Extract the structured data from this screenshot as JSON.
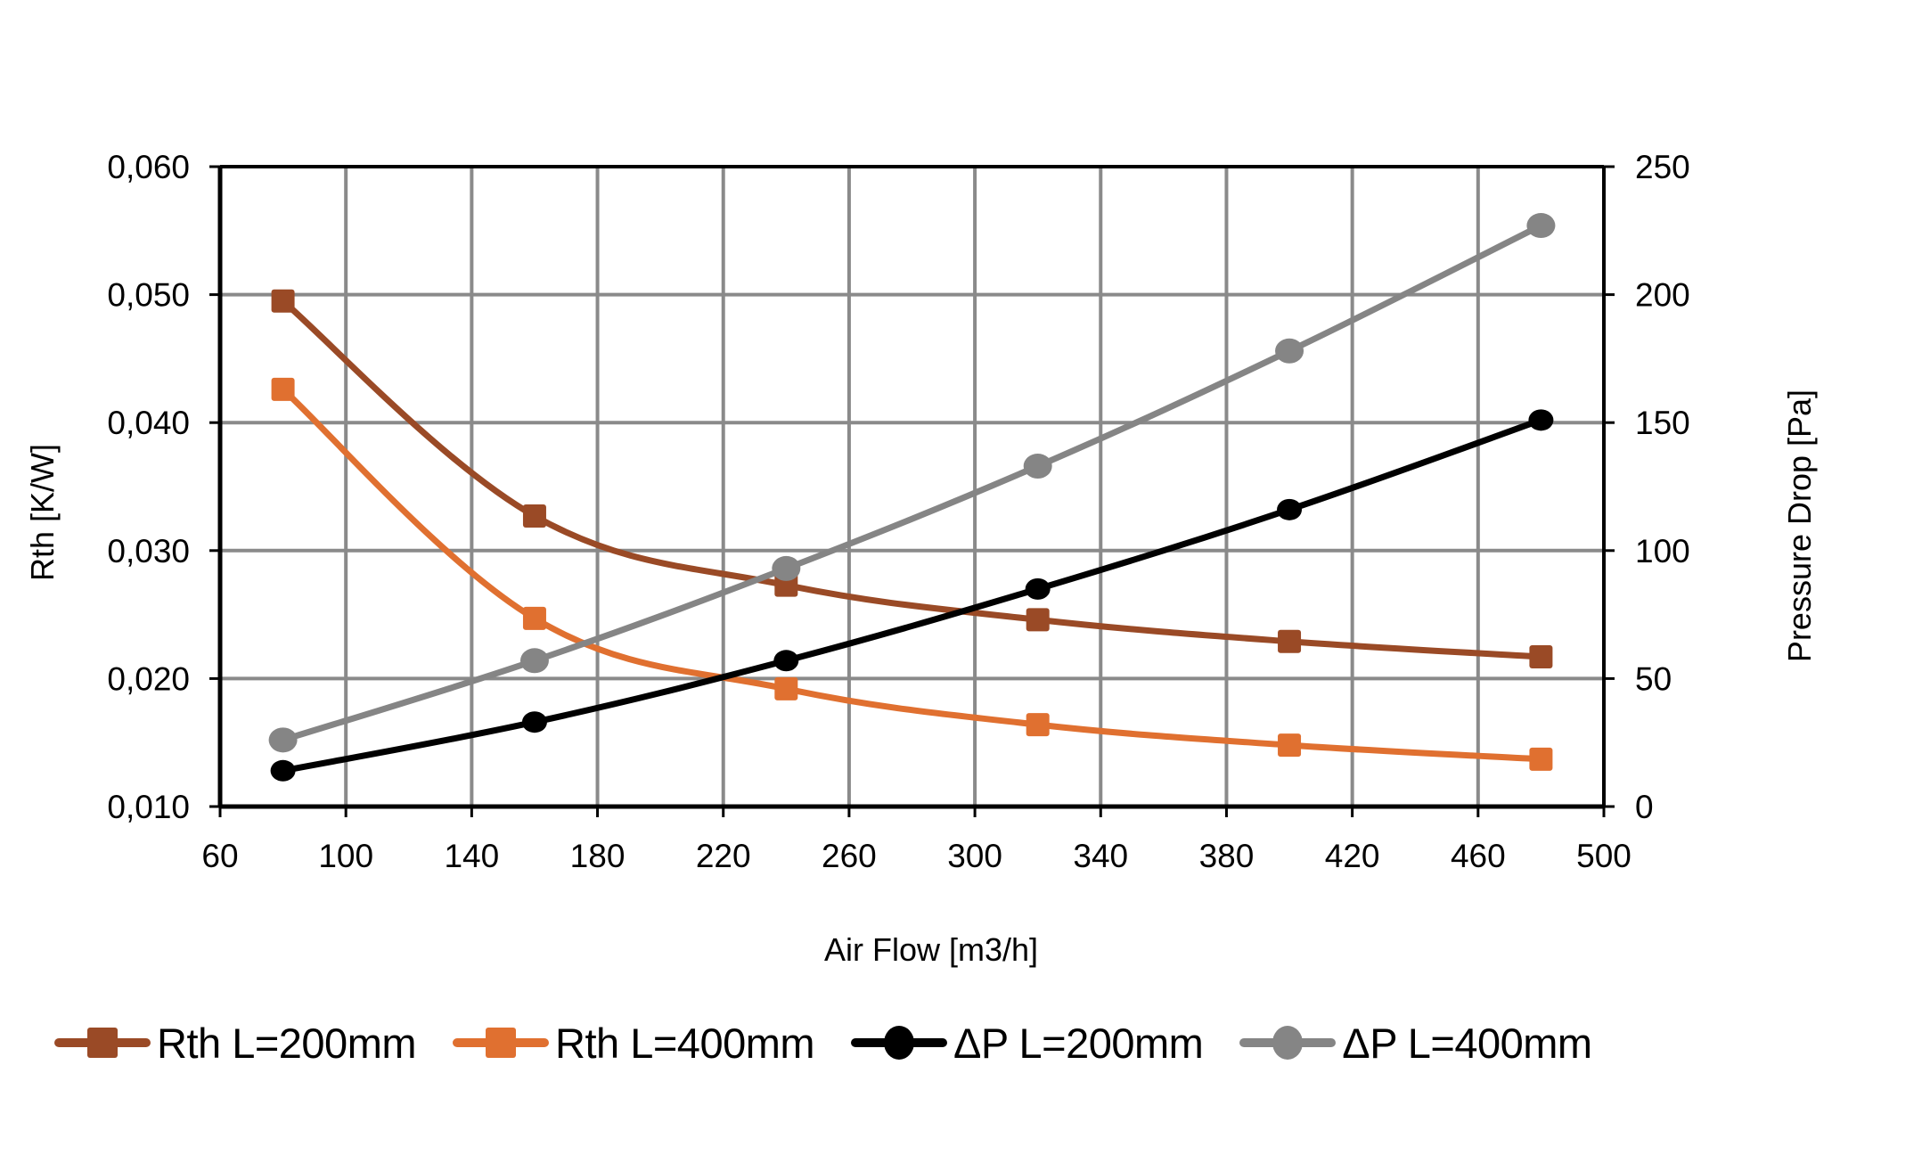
{
  "chart_data": {
    "type": "line",
    "title": "",
    "xlabel": "Air Flow [m3/h]",
    "ylabel": "Rth [K/W]",
    "y2label": "Pressure Drop [Pa]",
    "xlim": [
      60,
      500
    ],
    "ylim": [
      0.01,
      0.06
    ],
    "y2lim": [
      0,
      250
    ],
    "grid": true,
    "legend_position": "bottom",
    "x_ticks": [
      "60",
      "100",
      "140",
      "180",
      "220",
      "260",
      "300",
      "340",
      "380",
      "420",
      "460",
      "500"
    ],
    "y_ticks": [
      "0,010",
      "0,020",
      "0,030",
      "0,040",
      "0,050",
      "0,060"
    ],
    "y2_ticks": [
      "0",
      "50",
      "100",
      "150",
      "200",
      "250"
    ],
    "x": [
      80,
      160,
      240,
      320,
      400,
      480
    ],
    "series": [
      {
        "name": "Rth L=200mm",
        "axis": "left",
        "marker": "square",
        "color": "#9A4A26",
        "values": [
          0.0495,
          0.0327,
          0.0273,
          0.0246,
          0.0229,
          0.0217
        ]
      },
      {
        "name": "Rth L=400mm",
        "axis": "left",
        "marker": "square",
        "color": "#E07030",
        "values": [
          0.0426,
          0.0247,
          0.0192,
          0.0164,
          0.0148,
          0.0137
        ]
      },
      {
        "name": "ΔP L=200mm",
        "axis": "right",
        "marker": "circle",
        "color": "#000000",
        "values": [
          14,
          33,
          57,
          85,
          116,
          151
        ]
      },
      {
        "name": "ΔP L=400mm",
        "axis": "right",
        "marker": "circle",
        "color": "#858585",
        "values": [
          26,
          57,
          93,
          133,
          178,
          227
        ]
      }
    ]
  },
  "colors": {
    "grid": "#8a8a8a",
    "axis": "#000000"
  }
}
